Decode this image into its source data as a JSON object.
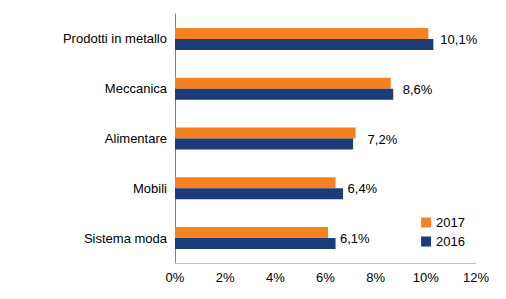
{
  "chart_data": {
    "type": "bar",
    "orientation": "horizontal",
    "categories": [
      "Prodotti in metallo",
      "Meccanica",
      "Alimentare",
      "Mobili",
      "Sistema moda"
    ],
    "series": [
      {
        "name": "2017",
        "color": "#F5821F",
        "values": [
          10.1,
          8.6,
          7.2,
          6.4,
          6.1
        ],
        "value_labels": [
          "10,1%",
          "8,6%",
          "7,2%",
          "6,4%",
          "6,1%"
        ]
      },
      {
        "name": "2016",
        "color": "#1B3C78",
        "values": [
          10.3,
          8.7,
          7.1,
          6.7,
          6.4
        ]
      }
    ],
    "xlim": [
      0,
      12
    ],
    "xticks": [
      {
        "value": 0,
        "label": "0%"
      },
      {
        "value": 2,
        "label": "2%"
      },
      {
        "value": 4,
        "label": "4%"
      },
      {
        "value": 6,
        "label": "6%"
      },
      {
        "value": 8,
        "label": "8%"
      },
      {
        "value": 10,
        "label": "10%"
      },
      {
        "value": 12,
        "label": "12%"
      }
    ],
    "grid": false,
    "legend": "lower right",
    "data_labels": true
  }
}
